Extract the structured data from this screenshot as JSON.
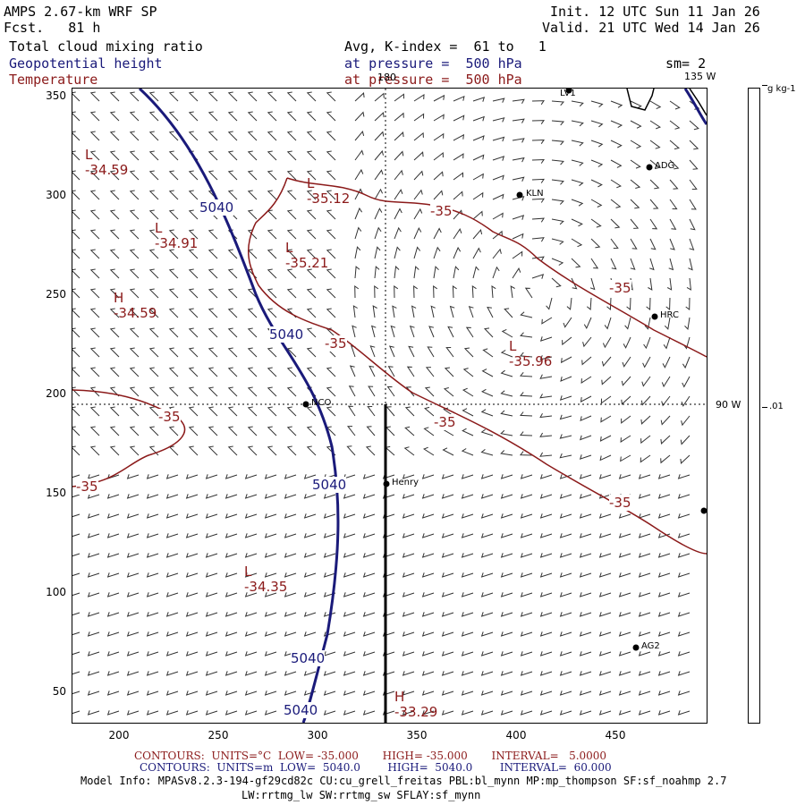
{
  "header": {
    "model": "AMPS 2.67-km WRF SP",
    "fcst": "Fcst.   81 h",
    "init": "Init. 12 UTC Sun 11 Jan 26",
    "valid": "Valid. 21 UTC Wed 14 Jan 26",
    "field1": "Total cloud mixing ratio",
    "field2": "Geopotential height",
    "field3": "Temperature",
    "avg": "Avg, K-index =  61 to   1",
    "pressure1": "at pressure =  500 hPa",
    "pressure2": "at pressure =  500 hPa",
    "sm": "sm= 2"
  },
  "map": {
    "y_ticks": [
      "350",
      "300",
      "250",
      "200",
      "150",
      "100",
      "50"
    ],
    "x_ticks": [
      "200",
      "250",
      "300",
      "350",
      "400",
      "450"
    ],
    "meridian_180": "180",
    "meridian_135": "135 W",
    "meridian_90": "90 W",
    "height_labels": [
      "5040",
      "5040",
      "5040",
      "5040",
      "5040"
    ],
    "temp_labels": [
      "-35",
      "-35",
      "-35",
      "-35",
      "-35",
      "-35"
    ],
    "extrema": [
      {
        "type": "L",
        "value": "-34.59"
      },
      {
        "type": "L",
        "value": "-35.12"
      },
      {
        "type": "L",
        "value": "-34.91"
      },
      {
        "type": "L",
        "value": "-35.21"
      },
      {
        "type": "H",
        "value": "-34.59"
      },
      {
        "type": "L",
        "value": "-35.96"
      },
      {
        "type": "L",
        "value": "-34.35"
      },
      {
        "type": "H",
        "value": "-33.29"
      }
    ],
    "stations": [
      "ADG",
      "KLN",
      "HRC",
      "NCO",
      "Henry",
      "AG2",
      "LV1"
    ]
  },
  "colorbar": {
    "unit": "g kg-1",
    "value": ".01"
  },
  "footer": {
    "temp_contours": "CONTOURS:  UNITS=°C  LOW= -35.000       HIGH= -35.000       INTERVAL=   5.0000",
    "height_contours": "CONTOURS:  UNITS=m  LOW=  5040.0        HIGH=  5040.0        INTERVAL=  60.000",
    "model_info": "Model Info: MPASv8.2.3-194-gf29cd82c CU:cu_grell_freitas PBL:bl_mynn MP:mp_thompson SF:sf_noahmp 2.7",
    "model_info2": "LW:rrtmg_lw SW:rrtmg_sw SFLAY:sf_mynn"
  },
  "colors": {
    "height": "#1a1a7a",
    "temperature": "#8b1a1a"
  }
}
